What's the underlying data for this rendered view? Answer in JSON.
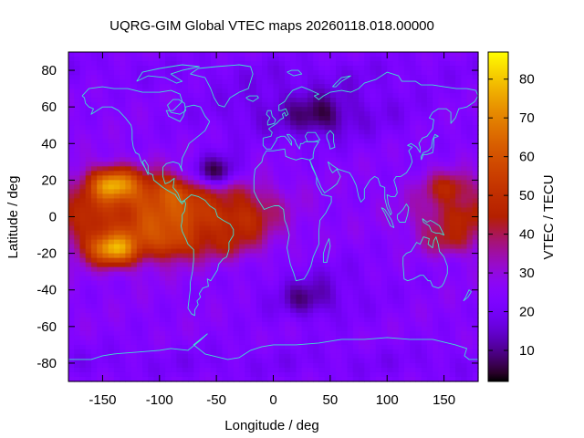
{
  "chart_data": {
    "type": "heatmap",
    "title": "UQRG-GIM Global VTEC maps 20260118.018.00000",
    "xlabel": "Longitude / deg",
    "ylabel": "Latitude / deg",
    "colorbar_label": "VTEC / TECU",
    "xlim": [
      -180,
      180
    ],
    "ylim": [
      -90,
      90
    ],
    "xticks": [
      -150,
      -100,
      -50,
      0,
      50,
      100,
      150
    ],
    "yticks": [
      -80,
      -60,
      -40,
      -20,
      0,
      20,
      40,
      60,
      80
    ],
    "colorbar_range": [
      2,
      87
    ],
    "colorbar_ticks": [
      10,
      20,
      30,
      40,
      50,
      60,
      70,
      80
    ],
    "colormap": "gnuplot",
    "coastline_color": "#40e0d0",
    "grid": false,
    "legend": "none",
    "vtec_features": [
      {
        "lon": -140,
        "lat": 17,
        "vtec": 85
      },
      {
        "lon": -140,
        "lat": -17,
        "vtec": 85
      },
      {
        "lon": -140,
        "lat": 0,
        "vtec": 50
      },
      {
        "lon": -90,
        "lat": 12,
        "vtec": 65
      },
      {
        "lon": -90,
        "lat": -12,
        "vtec": 62
      },
      {
        "lon": -40,
        "lat": 10,
        "vtec": 45
      },
      {
        "lon": -40,
        "lat": -12,
        "vtec": 45
      },
      {
        "lon": 155,
        "lat": 15,
        "vtec": 50
      },
      {
        "lon": 155,
        "lat": -12,
        "vtec": 45
      },
      {
        "lon": 40,
        "lat": 55,
        "vtec": 4
      },
      {
        "lon": -50,
        "lat": 25,
        "vtec": 4
      },
      {
        "lon": 30,
        "lat": -45,
        "vtec": 8
      }
    ]
  }
}
